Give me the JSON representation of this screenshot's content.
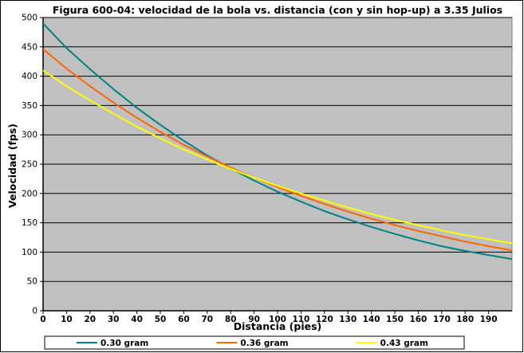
{
  "chart_data": {
    "type": "line",
    "title": "Figura 600-04: velocidad de la bola vs. distancia (con y sin hop-up) a 3.35 Julios",
    "xlabel": "Distancia (pies)",
    "ylabel": "Velocidad (fps)",
    "xlim": [
      0,
      200
    ],
    "ylim": [
      0,
      500
    ],
    "x_ticks": [
      0,
      10,
      20,
      30,
      40,
      50,
      60,
      70,
      80,
      90,
      100,
      110,
      120,
      130,
      140,
      150,
      160,
      170,
      180,
      190
    ],
    "y_ticks": [
      0,
      50,
      100,
      150,
      200,
      250,
      300,
      350,
      400,
      450,
      500
    ],
    "grid": "horizontal",
    "plot_background": "#c0c0c0",
    "legend_position": "bottom",
    "x": [
      0,
      10,
      20,
      30,
      40,
      50,
      60,
      70,
      80,
      90,
      100,
      110,
      120,
      130,
      140,
      150,
      160,
      170,
      180,
      190,
      200
    ],
    "series": [
      {
        "name": "0.30 gram",
        "color": "#008080",
        "values": [
          490,
          448,
          412,
          378,
          346,
          317,
          290,
          265,
          243,
          222,
          203,
          186,
          170,
          156,
          143,
          131,
          120,
          110,
          102,
          95,
          88
        ]
      },
      {
        "name": "0.36 gram",
        "color": "#ff6600",
        "values": [
          446,
          413,
          383,
          355,
          329,
          305,
          283,
          263,
          244,
          227,
          211,
          196,
          182,
          169,
          157,
          146,
          136,
          127,
          118,
          110,
          103
        ]
      },
      {
        "name": "0.43 gram",
        "color": "#ffff00",
        "values": [
          410,
          383,
          359,
          336,
          314,
          294,
          275,
          258,
          242,
          227,
          213,
          200,
          188,
          176,
          165,
          155,
          146,
          137,
          129,
          122,
          115
        ]
      }
    ]
  }
}
